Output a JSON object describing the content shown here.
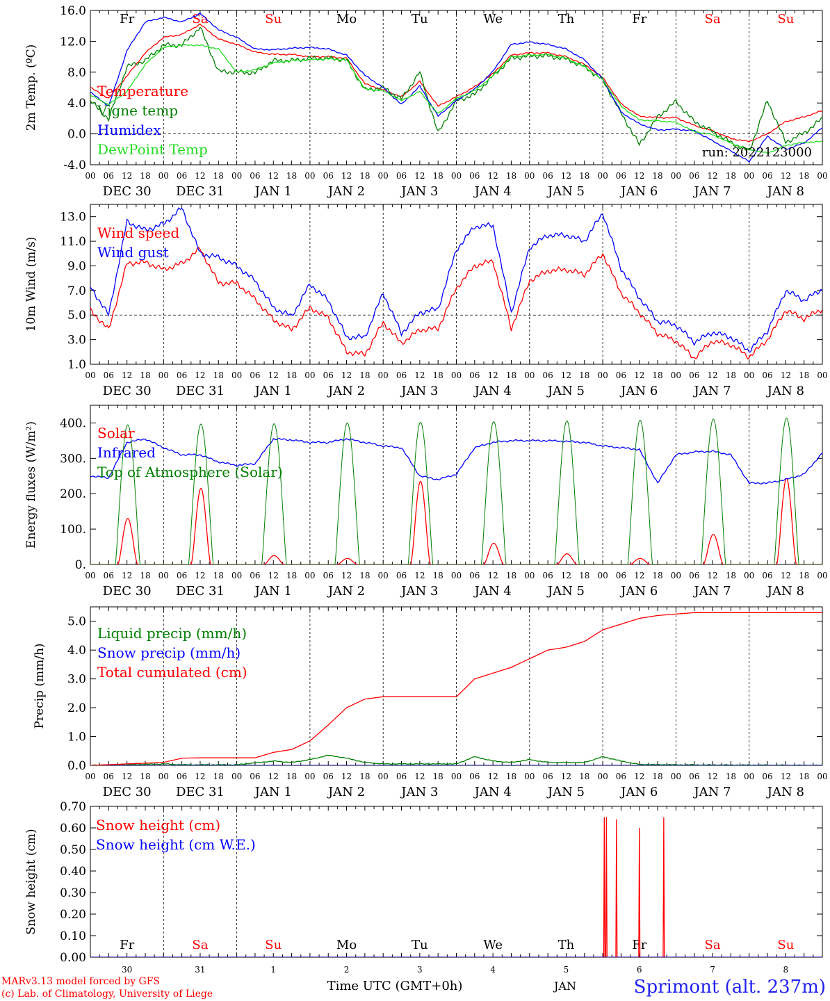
{
  "page": {
    "credit_line1": "MARv3.13 model forced by GFS",
    "credit_line2": "(c) Lab. of Climatology, University of Liege",
    "time_axis_label": "Time UTC (GMT+0h)",
    "month_label": "JAN",
    "station_title": "Sprimont (alt. 237m)",
    "run_label": "run: 2022123000",
    "colors": {
      "red": "#ff0000",
      "green": "#008000",
      "blue": "#0000ff",
      "lightgreen": "#22dd22",
      "black": "#000000"
    }
  },
  "time_axis": {
    "days": 10,
    "hour_ticks": [
      "00",
      "06",
      "12",
      "18"
    ],
    "final_tick": "00",
    "date_labels": [
      "DEC 30",
      "DEC 31",
      "JAN  1",
      "JAN  2",
      "JAN  3",
      "JAN  4",
      "JAN  5",
      "JAN  6",
      "JAN  7",
      "JAN  8"
    ],
    "weekdays": [
      "Fr",
      "Sa",
      "Su",
      "Mo",
      "Tu",
      "We",
      "Th",
      "Fr",
      "Sa",
      "Su"
    ],
    "weekday_colors": [
      "black",
      "red",
      "red",
      "black",
      "black",
      "black",
      "black",
      "black",
      "red",
      "red"
    ],
    "day_numbers": [
      "30",
      "31",
      "1",
      "2",
      "3",
      "4",
      "5",
      "6",
      "7",
      "8"
    ]
  },
  "chart_data": [
    {
      "type": "line",
      "ylabel": "2m Temp. (ºC)",
      "ylim": [
        -4.0,
        16.0
      ],
      "yticks": [
        "-4.0",
        "0.0",
        "4.0",
        "8.0",
        "12.0",
        "16.0"
      ],
      "ref_line": 0.0,
      "x_unit": "hours since Dec 30 00 UTC",
      "series": [
        {
          "name": "Temperature",
          "color": "red",
          "x": [
            0,
            6,
            12,
            18,
            24,
            30,
            36,
            42,
            48,
            54,
            60,
            66,
            72,
            78,
            84,
            90,
            96,
            102,
            108,
            114,
            120,
            126,
            132,
            138,
            144,
            150,
            156,
            162,
            168,
            174,
            180,
            186,
            192,
            198,
            204,
            210,
            216,
            222,
            228,
            234,
            240
          ],
          "y": [
            6.0,
            4.6,
            7.5,
            10.5,
            12.5,
            12.9,
            14.2,
            12.3,
            11.6,
            10.6,
            10.3,
            10.3,
            10.0,
            10.0,
            9.8,
            6.5,
            5.7,
            4.8,
            6.8,
            3.6,
            4.8,
            6.1,
            7.8,
            10.2,
            10.5,
            10.5,
            10.0,
            9.0,
            7.3,
            3.9,
            2.3,
            2.1,
            2.1,
            1.1,
            0.4,
            -0.6,
            -1.0,
            0.0,
            1.6,
            2.2,
            3.0
          ]
        },
        {
          "name": "Vigne temp",
          "color": "green",
          "x": [
            0,
            6,
            12,
            18,
            24,
            30,
            36,
            42,
            48,
            54,
            60,
            66,
            72,
            78,
            84,
            90,
            96,
            102,
            108,
            114,
            120,
            126,
            132,
            138,
            144,
            150,
            156,
            162,
            168,
            174,
            180,
            186,
            192,
            198,
            204,
            210,
            216,
            222,
            228,
            234,
            240
          ],
          "y": [
            4.3,
            1.9,
            8.7,
            9.5,
            11.5,
            11.5,
            13.8,
            8.1,
            8.0,
            7.9,
            9.5,
            9.5,
            9.8,
            9.8,
            9.6,
            5.7,
            6.0,
            4.5,
            8.0,
            0.1,
            4.3,
            5.1,
            7.5,
            9.8,
            10.1,
            10.1,
            9.7,
            8.7,
            7.0,
            2.7,
            -1.4,
            2.2,
            4.2,
            1.6,
            0.3,
            -1.1,
            -2.3,
            4.3,
            -1.1,
            0.1,
            2.0
          ]
        },
        {
          "name": "Humidex",
          "color": "blue",
          "x": [
            0,
            6,
            12,
            18,
            24,
            30,
            36,
            42,
            48,
            54,
            60,
            66,
            72,
            78,
            84,
            90,
            96,
            102,
            108,
            114,
            120,
            126,
            132,
            138,
            144,
            150,
            156,
            162,
            168,
            174,
            180,
            186,
            192,
            198,
            204,
            210,
            216,
            222,
            228,
            234,
            240
          ],
          "y": [
            5.4,
            3.6,
            10.8,
            14.5,
            15.1,
            14.5,
            15.6,
            13.5,
            12.5,
            11.0,
            10.9,
            11.1,
            11.2,
            11.0,
            10.2,
            7.6,
            6.0,
            3.8,
            6.2,
            2.3,
            4.3,
            5.8,
            8.1,
            11.6,
            11.9,
            11.6,
            11.0,
            9.6,
            7.1,
            2.8,
            1.3,
            0.5,
            0.6,
            0.4,
            -0.9,
            -2.2,
            -3.6,
            -0.3,
            -2.0,
            -1.2,
            0.8
          ]
        },
        {
          "name": "DewPoint Temp",
          "color": "lightgreen",
          "x": [
            0,
            6,
            12,
            18,
            24,
            30,
            36,
            42,
            48,
            54,
            60,
            66,
            72,
            78,
            84,
            90,
            96,
            102,
            108,
            114,
            120,
            126,
            132,
            138,
            144,
            150,
            156,
            162,
            168,
            174,
            180,
            186,
            192,
            198,
            204,
            210,
            216,
            222,
            228,
            234,
            240
          ],
          "y": [
            5.0,
            3.8,
            5.5,
            9.0,
            11.2,
            11.5,
            11.5,
            11.0,
            8.0,
            8.3,
            9.2,
            9.5,
            9.6,
            9.7,
            9.6,
            5.8,
            5.6,
            4.3,
            5.5,
            2.6,
            4.6,
            5.6,
            7.5,
            10.0,
            10.2,
            10.3,
            9.8,
            8.7,
            7.0,
            3.6,
            1.8,
            1.7,
            1.5,
            0.3,
            -0.1,
            -1.2,
            -2.0,
            -2.5,
            -1.5,
            -1.1,
            -1.0
          ]
        }
      ]
    },
    {
      "type": "line",
      "ylabel": "10m Wind (m/s)",
      "ylim": [
        1.0,
        14.0
      ],
      "yticks": [
        "1.0",
        "3.0",
        "5.0",
        "7.0",
        "9.0",
        "11.0",
        "13.0"
      ],
      "ref_line": 5.0,
      "x_unit": "hours since Dec 30 00 UTC",
      "series": [
        {
          "name": "Wind speed",
          "color": "red",
          "x": [
            0,
            6,
            12,
            18,
            24,
            30,
            36,
            42,
            48,
            54,
            60,
            66,
            72,
            78,
            84,
            90,
            96,
            102,
            108,
            114,
            120,
            126,
            132,
            138,
            144,
            150,
            156,
            162,
            168,
            174,
            180,
            186,
            192,
            198,
            204,
            210,
            216,
            222,
            228,
            234,
            240
          ],
          "y": [
            5.4,
            3.8,
            9.2,
            9.3,
            8.7,
            9.2,
            10.4,
            7.6,
            7.6,
            6.3,
            4.6,
            3.8,
            5.6,
            4.8,
            2.0,
            1.8,
            4.4,
            2.7,
            3.8,
            3.9,
            7.2,
            9.0,
            9.4,
            3.9,
            7.8,
            8.6,
            8.7,
            8.3,
            10.0,
            6.8,
            5.2,
            3.5,
            2.9,
            1.5,
            2.9,
            2.6,
            1.6,
            3.0,
            5.4,
            4.7,
            5.5
          ]
        },
        {
          "name": "Wind gust",
          "color": "blue",
          "x": [
            0,
            6,
            12,
            18,
            24,
            30,
            36,
            42,
            48,
            54,
            60,
            66,
            72,
            78,
            84,
            90,
            96,
            102,
            108,
            114,
            120,
            126,
            132,
            138,
            144,
            150,
            156,
            162,
            168,
            174,
            180,
            186,
            192,
            198,
            204,
            210,
            216,
            222,
            228,
            234,
            240
          ],
          "y": [
            7.3,
            5.0,
            12.6,
            11.9,
            12.4,
            13.7,
            10.0,
            9.7,
            9.0,
            7.8,
            5.6,
            4.9,
            7.5,
            6.2,
            3.2,
            3.2,
            6.8,
            3.5,
            5.2,
            5.5,
            10.3,
            12.2,
            12.3,
            5.2,
            10.5,
            11.5,
            11.5,
            11.0,
            13.3,
            8.8,
            6.4,
            4.5,
            4.2,
            2.8,
            3.6,
            3.2,
            2.1,
            3.7,
            7.0,
            6.2,
            7.1
          ]
        }
      ]
    },
    {
      "type": "line",
      "ylabel": "Energy fluxes (W/m²)",
      "ylim": [
        0,
        450
      ],
      "yticks": [
        "0.",
        "100.",
        "200.",
        "300.",
        "400."
      ],
      "x_unit": "hours since Dec 30 00 UTC",
      "series": [
        {
          "name": "Solar",
          "color": "red",
          "kind": "daily_peaks",
          "peaks": [
            130,
            215,
            25,
            17,
            235,
            60,
            30,
            17,
            85,
            243
          ]
        },
        {
          "name": "Infrared",
          "color": "blue",
          "x": [
            0,
            6,
            12,
            18,
            24,
            30,
            36,
            42,
            48,
            54,
            60,
            66,
            72,
            78,
            84,
            90,
            96,
            102,
            108,
            114,
            120,
            126,
            132,
            138,
            144,
            150,
            156,
            162,
            168,
            174,
            180,
            186,
            192,
            198,
            204,
            210,
            216,
            222,
            228,
            234,
            240
          ],
          "y": [
            250,
            245,
            345,
            355,
            330,
            310,
            310,
            290,
            280,
            285,
            355,
            352,
            345,
            345,
            355,
            345,
            335,
            330,
            250,
            240,
            255,
            330,
            345,
            350,
            350,
            350,
            348,
            345,
            335,
            330,
            325,
            230,
            310,
            318,
            320,
            310,
            230,
            230,
            240,
            255,
            315
          ]
        },
        {
          "name": "Top of Atmosphere (Solar)",
          "color": "green",
          "kind": "daily_peaks",
          "peaks": [
            395,
            397,
            398,
            400,
            402,
            404,
            406,
            408,
            411,
            414
          ]
        }
      ]
    },
    {
      "type": "line",
      "ylabel": "Precip (mm/h)",
      "ylim": [
        0.0,
        5.5
      ],
      "yticks": [
        "0.0",
        "1.0",
        "2.0",
        "3.0",
        "4.0",
        "5.0"
      ],
      "x_unit": "hours since Dec 30 00 UTC",
      "series": [
        {
          "name": "Liquid precip (mm/h)",
          "color": "green",
          "x": [
            0,
            12,
            24,
            30,
            48,
            60,
            66,
            72,
            78,
            84,
            90,
            96,
            120,
            126,
            132,
            138,
            144,
            150,
            156,
            162,
            168,
            174,
            180,
            192,
            240
          ],
          "y": [
            0,
            0.02,
            0.05,
            0.02,
            0.02,
            0.15,
            0.1,
            0.2,
            0.35,
            0.25,
            0.1,
            0.05,
            0.05,
            0.3,
            0.15,
            0.1,
            0.2,
            0.1,
            0.1,
            0.1,
            0.3,
            0.15,
            0.03,
            0.02,
            0.0
          ]
        },
        {
          "name": "Snow precip (mm/h)",
          "color": "blue",
          "x": [
            0,
            240
          ],
          "y": [
            0,
            0
          ]
        },
        {
          "name": "Total cumulated (cm)",
          "color": "red",
          "x": [
            0,
            12,
            24,
            30,
            36,
            48,
            54,
            60,
            66,
            72,
            78,
            84,
            90,
            96,
            102,
            108,
            114,
            120,
            126,
            132,
            138,
            144,
            150,
            156,
            162,
            168,
            174,
            180,
            186,
            192,
            198,
            240
          ],
          "y": [
            0.0,
            0.05,
            0.1,
            0.25,
            0.26,
            0.26,
            0.26,
            0.45,
            0.55,
            0.85,
            1.4,
            2.0,
            2.3,
            2.38,
            2.38,
            2.38,
            2.38,
            2.38,
            3.0,
            3.2,
            3.4,
            3.7,
            4.0,
            4.1,
            4.3,
            4.7,
            4.9,
            5.1,
            5.2,
            5.25,
            5.3,
            5.3
          ]
        }
      ]
    },
    {
      "type": "line",
      "ylabel": "Snow height (cm)",
      "ylim": [
        0.0,
        0.7
      ],
      "yticks": [
        "0.00",
        "0.10",
        "0.20",
        "0.30",
        "0.40",
        "0.50",
        "0.60",
        "0.70"
      ],
      "x_unit": "hours since Dec 30 00 UTC",
      "series": [
        {
          "name": "Snow height (cm)",
          "color": "red",
          "kind": "spikes",
          "x": [
            168.5,
            169.2,
            172.5,
            180.0,
            188.0
          ],
          "y": [
            0.65,
            0.65,
            0.64,
            0.6,
            0.65
          ]
        },
        {
          "name": "Snow height (cm W.E.)",
          "color": "blue",
          "x": [
            0,
            240
          ],
          "y": [
            0,
            0
          ]
        }
      ]
    }
  ]
}
